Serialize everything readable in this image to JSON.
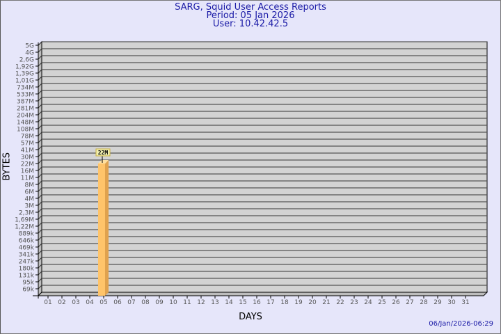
{
  "header": {
    "title": "SARG, Squid User Access Reports",
    "period": "Period: 05 Jan 2026",
    "user": "User: 10.42.42.5"
  },
  "timestamp": "06/Jan/2026-06:29",
  "colors": {
    "background": "#e6e6fa",
    "plot": "#d3d3d3",
    "bar_front": "#ffc46a",
    "bar_side": "#e0a24e",
    "title": "#1a1aa6"
  },
  "chart_data": {
    "type": "bar",
    "style": "3d",
    "xlabel": "DAYS",
    "ylabel": "BYTES",
    "grid": true,
    "y_scale": "log-like (labelled ticks)",
    "y_ticks": [
      "5G",
      "4G",
      "2,6G",
      "1,92G",
      "1,39G",
      "1,01G",
      "734M",
      "533M",
      "387M",
      "281M",
      "204M",
      "148M",
      "108M",
      "78M",
      "57M",
      "41M",
      "30M",
      "22M",
      "16M",
      "11M",
      "8M",
      "6M",
      "4M",
      "3M",
      "2,3M",
      "1,69M",
      "1,22M",
      "889k",
      "646k",
      "469k",
      "341k",
      "247k",
      "180k",
      "131k",
      "95k",
      "69k"
    ],
    "categories": [
      "01",
      "02",
      "03",
      "04",
      "05",
      "06",
      "07",
      "08",
      "09",
      "10",
      "11",
      "12",
      "13",
      "14",
      "15",
      "16",
      "17",
      "18",
      "19",
      "20",
      "21",
      "22",
      "23",
      "24",
      "25",
      "26",
      "27",
      "28",
      "29",
      "30",
      "31"
    ],
    "values": [
      0,
      0,
      0,
      0,
      22000000,
      0,
      0,
      0,
      0,
      0,
      0,
      0,
      0,
      0,
      0,
      0,
      0,
      0,
      0,
      0,
      0,
      0,
      0,
      0,
      0,
      0,
      0,
      0,
      0,
      0,
      0
    ],
    "data_labels": [
      {
        "category": "05",
        "label": "22M"
      }
    ]
  }
}
